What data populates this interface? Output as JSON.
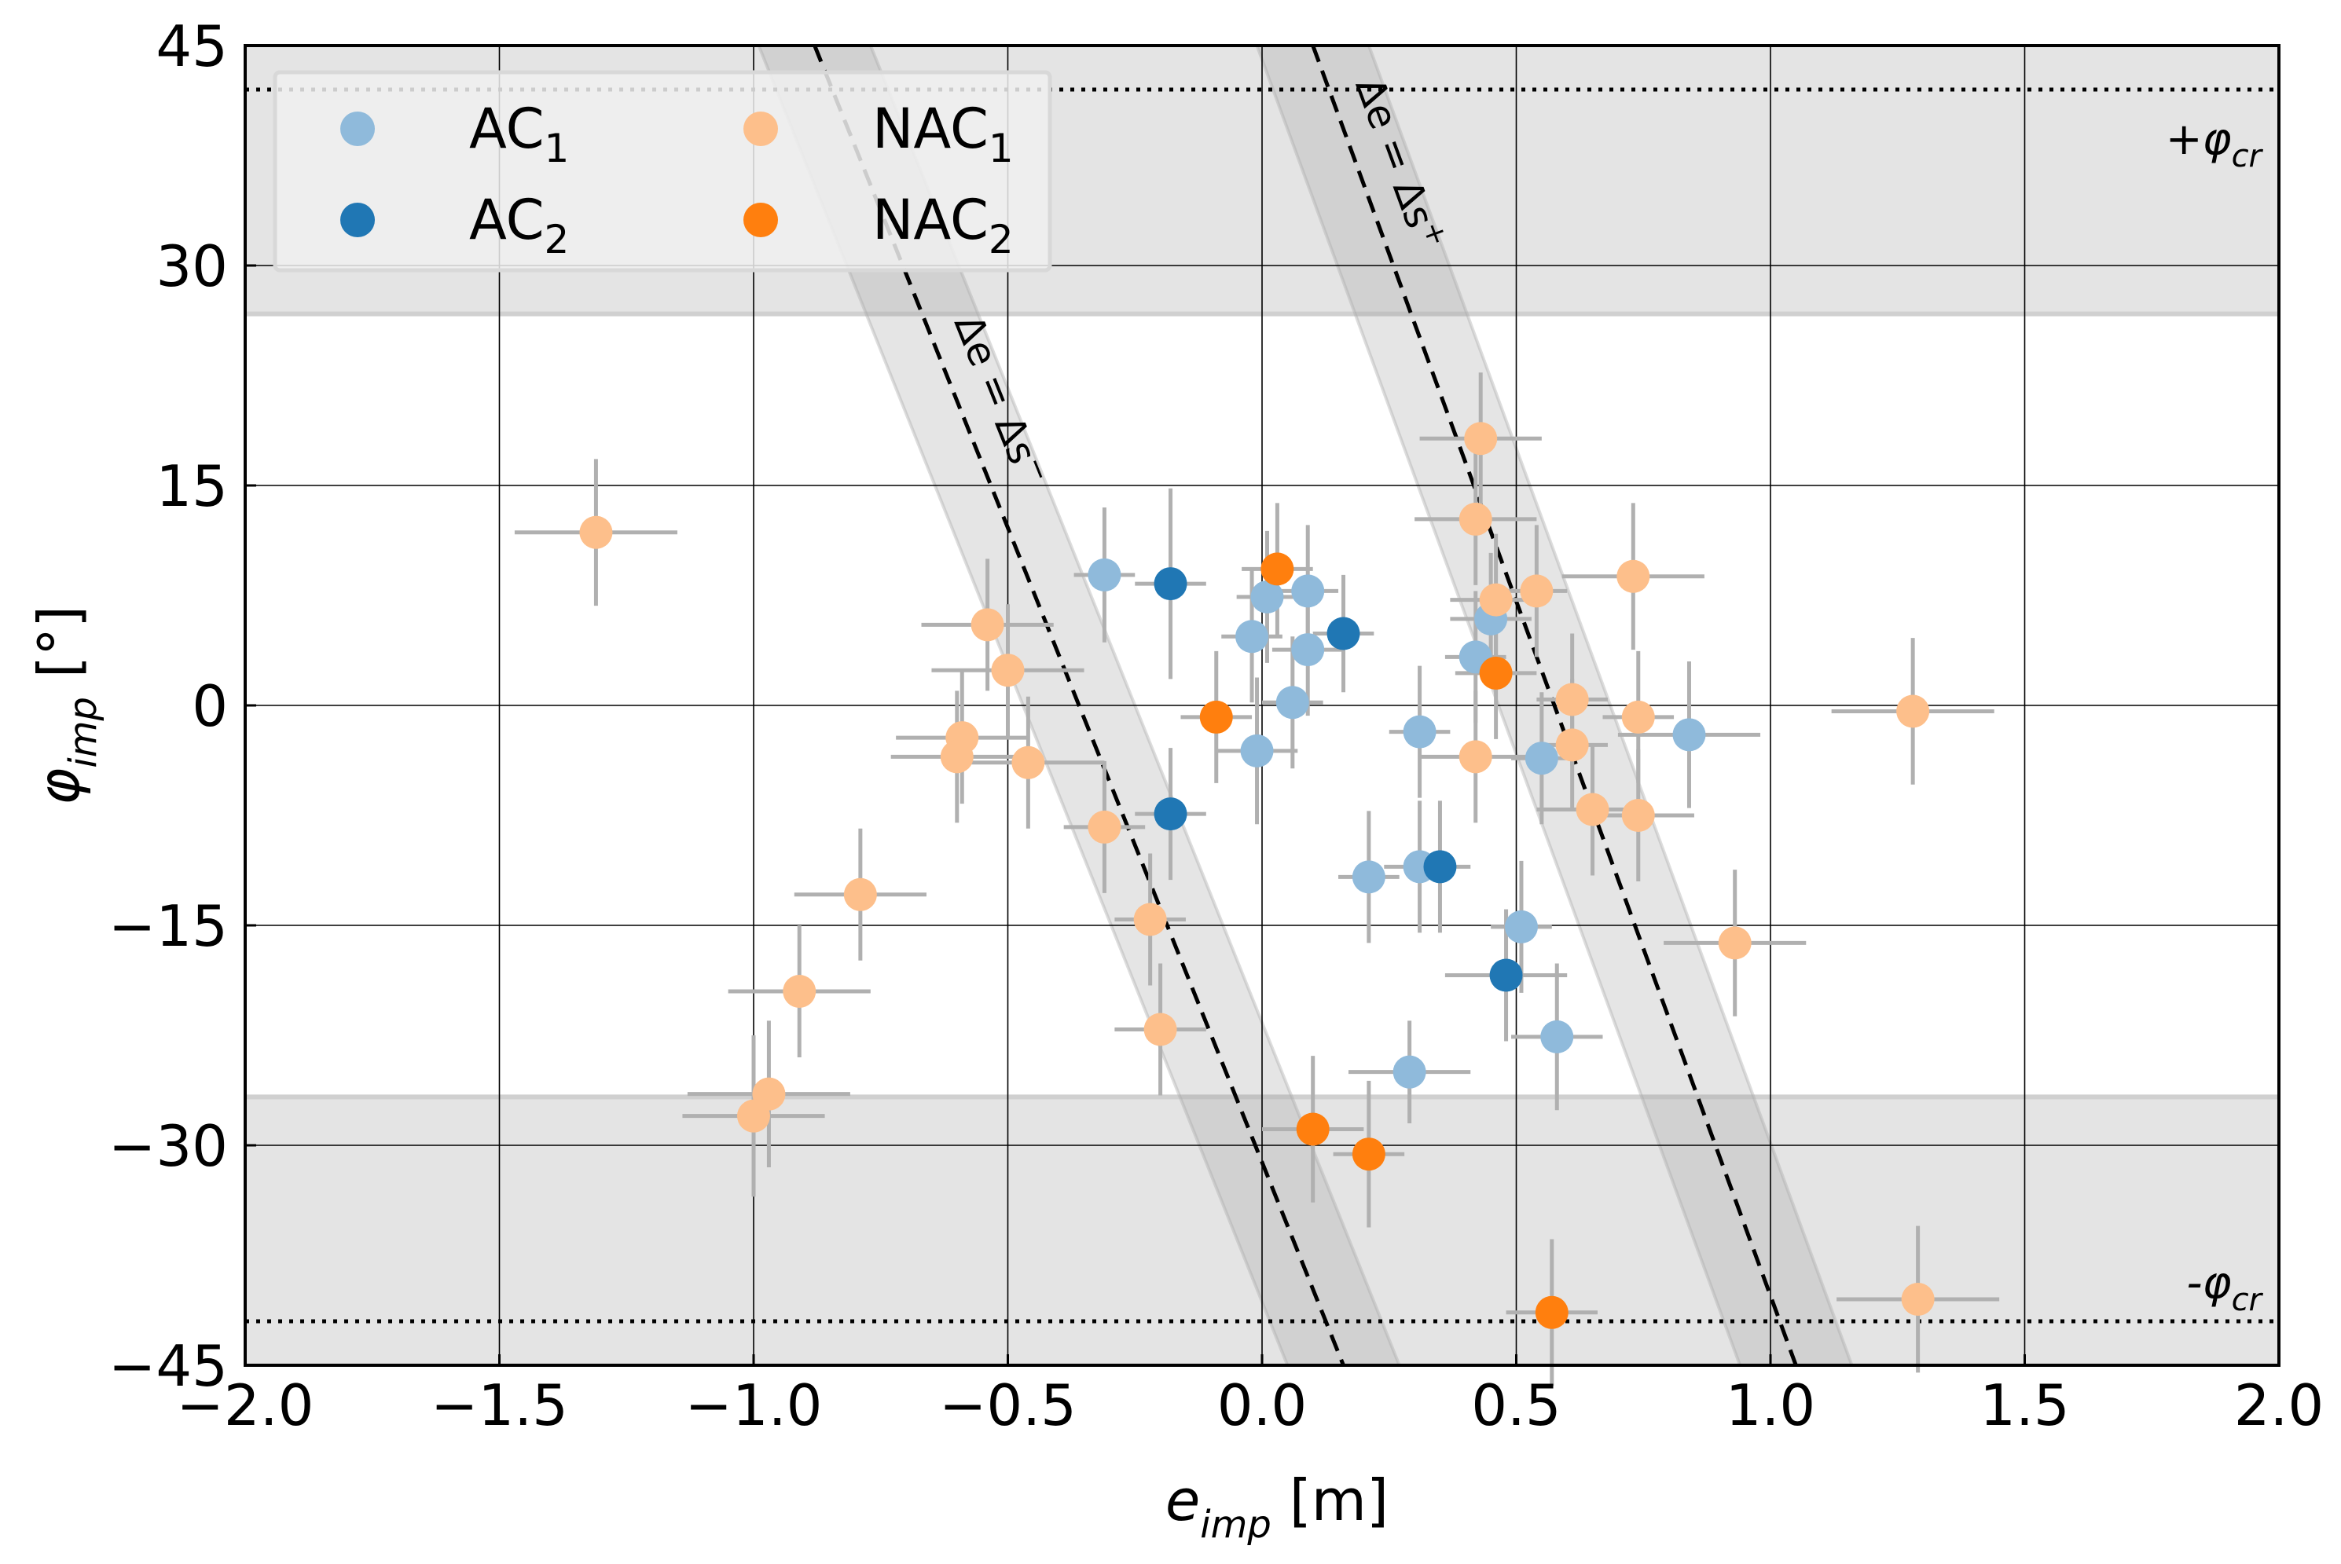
{
  "chart_data": {
    "type": "scatter",
    "xlabel": {
      "main": "e",
      "sub": "imp",
      "unit": " [m]"
    },
    "ylabel": {
      "main": "φ",
      "sub": "imp",
      "unit": "[°]"
    },
    "xlim": [
      -2.0,
      2.0
    ],
    "ylim": [
      -45,
      45
    ],
    "x_ticks": [
      -2.0,
      -1.5,
      -1.0,
      -0.5,
      0.0,
      0.5,
      1.0,
      1.5,
      2.0
    ],
    "x_tick_labels": [
      "−2.0",
      "−1.5",
      "−1.0",
      "−0.5",
      "0.0",
      "0.5",
      "1.0",
      "1.5",
      "2.0"
    ],
    "y_ticks": [
      -45,
      -30,
      -15,
      0,
      15,
      30,
      45
    ],
    "y_tick_labels": [
      "−45",
      "−30",
      "−15",
      "0",
      "15",
      "30",
      "45"
    ],
    "grid": true,
    "critical_angle": 42,
    "critical_labels": {
      "upper": {
        "main": "+φ",
        "sub": "cr"
      },
      "lower": {
        "main": "-φ",
        "sub": "cr"
      }
    },
    "shaded_bands_y": [
      [
        26.7,
        45
      ],
      [
        -45,
        -26.7
      ]
    ],
    "diagonal_lines": [
      {
        "name": "delta-s-minus",
        "label_main": "Δe = Δs",
        "label_sup": "−",
        "from": [
          -0.88,
          45
        ],
        "to": [
          0.16,
          -45
        ],
        "band_halfwidth": 0.11
      },
      {
        "name": "delta-s-plus",
        "label_main": "Δe = Δs",
        "label_sup": "+",
        "from": [
          0.1,
          45
        ],
        "to": [
          1.05,
          -45
        ],
        "band_halfwidth": 0.11
      }
    ],
    "legend_location": "top-left",
    "series": [
      {
        "name": "AC",
        "name_sub": "1",
        "color": "#8fbadb",
        "points": [
          [
            -0.31,
            8.9,
            0.06,
            4.6
          ],
          [
            -0.02,
            4.7,
            0.06,
            4.5
          ],
          [
            0.01,
            7.4,
            0.06,
            4.5
          ],
          [
            0.09,
            7.8,
            0.06,
            4.5
          ],
          [
            0.09,
            3.8,
            0.07,
            4.5
          ],
          [
            0.06,
            0.2,
            0.06,
            4.5
          ],
          [
            -0.01,
            -3.1,
            0.08,
            5.0
          ],
          [
            0.31,
            -1.8,
            0.06,
            4.5
          ],
          [
            0.21,
            -11.7,
            0.06,
            4.5
          ],
          [
            0.31,
            -11.0,
            0.07,
            4.5
          ],
          [
            0.45,
            5.9,
            0.08,
            4.5
          ],
          [
            0.42,
            3.3,
            0.06,
            4.5
          ],
          [
            0.55,
            -3.6,
            0.06,
            4.5
          ],
          [
            0.51,
            -15.1,
            0.06,
            4.5
          ],
          [
            0.29,
            -25.0,
            0.12,
            3.5
          ],
          [
            0.58,
            -22.6,
            0.09,
            5.0
          ],
          [
            0.84,
            -2.0,
            0.14,
            5.0
          ]
        ]
      },
      {
        "name": "AC",
        "name_sub": "2",
        "color": "#2077b4",
        "points": [
          [
            -0.18,
            8.3,
            0.07,
            6.5
          ],
          [
            -0.18,
            -7.4,
            0.07,
            4.5
          ],
          [
            0.16,
            4.9,
            0.06,
            4.0
          ],
          [
            0.35,
            -11.0,
            0.06,
            4.5
          ],
          [
            0.48,
            -18.4,
            0.12,
            4.5
          ]
        ]
      },
      {
        "name": "NAC",
        "name_sub": "1",
        "color": "#fdbf8b",
        "points": [
          [
            -1.31,
            11.8,
            0.16,
            5.0
          ],
          [
            -0.54,
            5.5,
            0.13,
            4.5
          ],
          [
            -0.5,
            2.4,
            0.15,
            4.5
          ],
          [
            -0.59,
            -2.2,
            0.13,
            4.5
          ],
          [
            -0.6,
            -3.5,
            0.13,
            4.5
          ],
          [
            -0.46,
            -3.9,
            0.15,
            4.5
          ],
          [
            -0.31,
            -8.3,
            0.08,
            4.5
          ],
          [
            -0.79,
            -12.9,
            0.13,
            4.5
          ],
          [
            -0.91,
            -19.5,
            0.14,
            4.5
          ],
          [
            -0.97,
            -26.5,
            0.16,
            5.0
          ],
          [
            -1.0,
            -28.0,
            0.14,
            5.5
          ],
          [
            -0.22,
            -14.6,
            0.07,
            4.5
          ],
          [
            -0.2,
            -22.1,
            0.09,
            4.5
          ],
          [
            0.43,
            18.2,
            0.12,
            4.5
          ],
          [
            0.42,
            12.7,
            0.12,
            4.5
          ],
          [
            0.46,
            7.2,
            0.09,
            4.5
          ],
          [
            0.54,
            7.8,
            0.06,
            4.5
          ],
          [
            0.42,
            -3.5,
            0.11,
            4.5
          ],
          [
            0.61,
            0.4,
            0.07,
            4.5
          ],
          [
            0.61,
            -2.7,
            0.07,
            4.5
          ],
          [
            0.65,
            -7.1,
            0.11,
            4.5
          ],
          [
            0.73,
            8.8,
            0.14,
            5.0
          ],
          [
            0.74,
            -0.8,
            0.07,
            4.5
          ],
          [
            0.74,
            -7.5,
            0.11,
            4.5
          ],
          [
            0.93,
            -16.2,
            0.14,
            5.0
          ],
          [
            1.28,
            -0.4,
            0.16,
            5.0
          ],
          [
            1.29,
            -40.5,
            0.16,
            5.0
          ]
        ]
      },
      {
        "name": "NAC",
        "name_sub": "2",
        "color": "#ff7f0e",
        "points": [
          [
            0.03,
            9.3,
            0.07,
            4.5
          ],
          [
            -0.09,
            -0.8,
            0.07,
            4.5
          ],
          [
            0.1,
            -28.9,
            0.1,
            5.0
          ],
          [
            0.21,
            -30.6,
            0.07,
            5.0
          ],
          [
            0.46,
            2.2,
            0.08,
            4.5
          ],
          [
            0.57,
            -41.4,
            0.09,
            5.0
          ]
        ]
      }
    ]
  }
}
